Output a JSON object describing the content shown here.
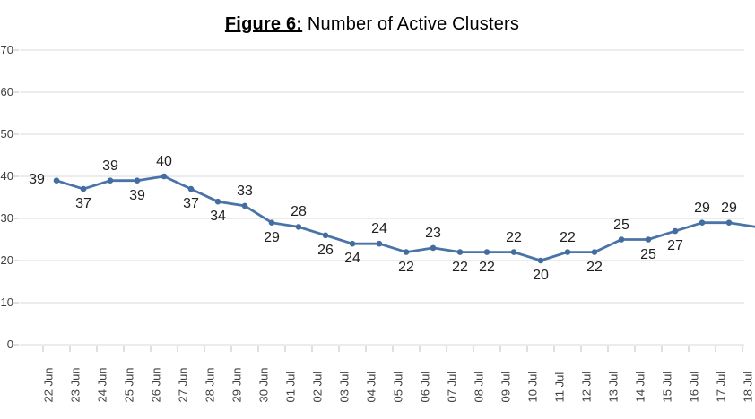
{
  "title": {
    "prefix": "Figure 6:",
    "rest": " Number of Active Clusters"
  },
  "chart_data": {
    "type": "line",
    "title": "Figure 6: Number of Active Clusters",
    "series_name": "Number of Active Clusters",
    "x": [
      "22 Jun",
      "23 Jun",
      "24 Jun",
      "25 Jun",
      "26 Jun",
      "27 Jun",
      "28 Jun",
      "29 Jun",
      "30 Jun",
      "01 Jul",
      "02 Jul",
      "03 Jul",
      "04 Jul",
      "05 Jul",
      "06 Jul",
      "07 Jul",
      "08 Jul",
      "09 Jul",
      "10 Jul",
      "11 Jul",
      "12 Jul",
      "13 Jul",
      "14 Jul",
      "15 Jul",
      "16 Jul",
      "17 Jul",
      "18 Jul"
    ],
    "values": [
      39,
      37,
      39,
      39,
      40,
      37,
      34,
      33,
      29,
      28,
      26,
      24,
      24,
      22,
      23,
      22,
      22,
      22,
      20,
      22,
      22,
      25,
      25,
      27,
      29,
      29,
      28
    ],
    "data_labels": [
      "39",
      "37",
      "39",
      "39",
      "40",
      "37",
      "34",
      "33",
      "29",
      "28",
      "26",
      "24",
      "24",
      "22",
      "23",
      "22",
      "22",
      "22",
      "20",
      "22",
      "22",
      "25",
      "25",
      "27",
      "29",
      "29",
      ""
    ],
    "label_positions": [
      "left",
      "below",
      "above",
      "below",
      "above",
      "below",
      "below",
      "above",
      "below",
      "above",
      "below",
      "below",
      "above",
      "below",
      "above",
      "below",
      "below",
      "above",
      "below",
      "above",
      "below",
      "above",
      "below",
      "below",
      "above",
      "above",
      ""
    ],
    "xlabel": "",
    "ylabel": "",
    "yticks": [
      0,
      10,
      20,
      30,
      40,
      50,
      60,
      70
    ],
    "ylim": [
      0,
      70
    ],
    "grid": "horizontal",
    "legend": "none",
    "notes": "last point (18 Jul) partially cut off at right edge; its value is estimated from the visible line segment",
    "colors": {
      "line": "#4a74a8",
      "marker": "#436d9f",
      "gridline": "#d9d9d9",
      "tick": "#bfbfbf",
      "axis_text": "#3f3f3f",
      "data_label_text": "#1f1f1f",
      "background": "#ffffff"
    }
  }
}
